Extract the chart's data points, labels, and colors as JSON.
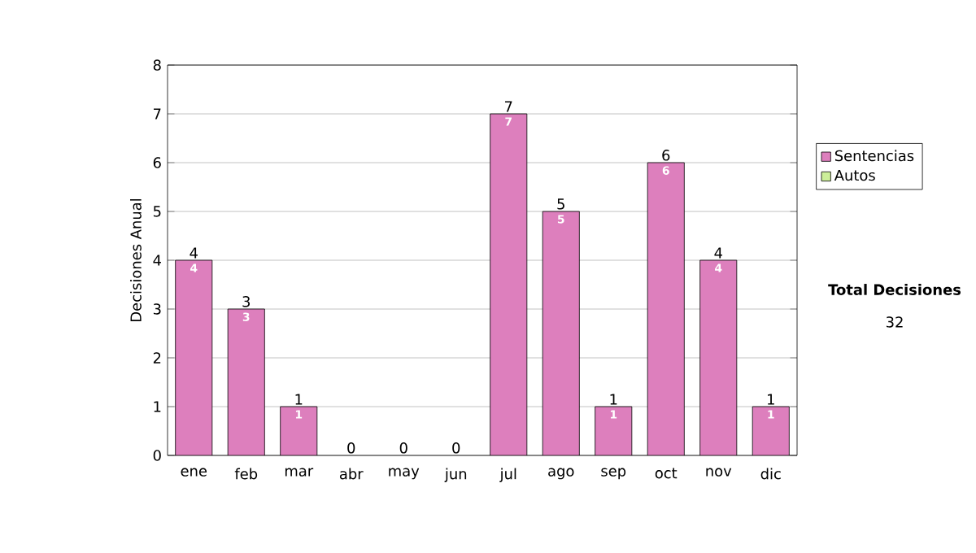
{
  "chart_data": {
    "type": "bar",
    "stacked": true,
    "ylabel": "Decisiones Anual",
    "categories": [
      "ene",
      "feb",
      "mar",
      "abr",
      "may",
      "jun",
      "jul",
      "ago",
      "sep",
      "oct",
      "nov",
      "dic"
    ],
    "series": [
      {
        "name": "Sentencias",
        "color": "#dd7fbd",
        "values": [
          4,
          3,
          1,
          0,
          0,
          0,
          7,
          5,
          1,
          6,
          4,
          1
        ],
        "value_labels": [
          "4",
          "3",
          "1",
          null,
          null,
          null,
          "7",
          "5",
          "1",
          "6",
          "4",
          "1"
        ]
      },
      {
        "name": "Autos",
        "color": "#ccee99",
        "values": [
          0,
          0,
          0,
          0,
          0,
          0,
          0,
          0,
          0,
          0,
          0,
          0
        ]
      }
    ],
    "totals": [
      "4",
      "3",
      "1",
      "0",
      "0",
      "0",
      "7",
      "5",
      "1",
      "6",
      "4",
      "1"
    ],
    "ylim": [
      0,
      8
    ],
    "yticks": [
      0,
      1,
      2,
      3,
      4,
      5,
      6,
      7,
      8
    ],
    "grid": "y",
    "legend": "right",
    "annotations": [
      "**Total Decisiones**",
      "32"
    ]
  }
}
